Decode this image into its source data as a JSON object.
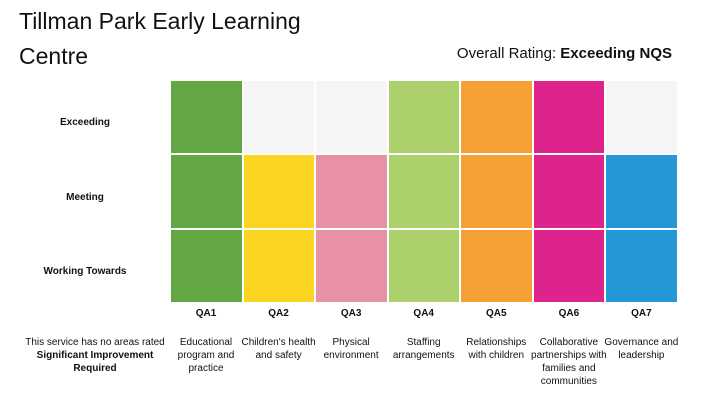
{
  "header": {
    "title": "Tillman Park Early Learning Centre",
    "overall_label": "Overall Rating:",
    "overall_value": "Exceeding NQS"
  },
  "note": {
    "line1": "This service has no areas rated",
    "line2": "Significant Improvement Required"
  },
  "chart_data": {
    "type": "heatmap",
    "title": "",
    "rows": [
      "Exceeding",
      "Meeting",
      "Working Towards"
    ],
    "categories": [
      "QA1",
      "QA2",
      "QA3",
      "QA4",
      "QA5",
      "QA6",
      "QA7"
    ],
    "category_descriptions": [
      "Educational program and practice",
      "Children's health and safety",
      "Physical environment",
      "Staffing arrangements",
      "Relationships with children",
      "Collaborative partnerships with families and communities",
      "Governance and leadership"
    ],
    "ratings": [
      "Exceeding",
      "Meeting",
      "Meeting",
      "Exceeding",
      "Exceeding",
      "Exceeding",
      "Meeting"
    ],
    "colors": [
      "#62a744",
      "#fcd422",
      "#e891a6",
      "#acd16c",
      "#f7a035",
      "#de238d",
      "#2597d6"
    ],
    "empty_color": "#f5f5f5"
  }
}
